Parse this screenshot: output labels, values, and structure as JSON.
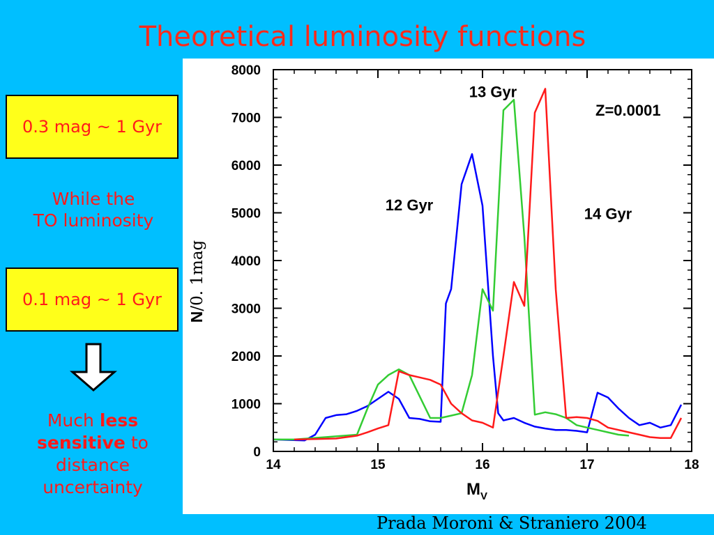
{
  "slide": {
    "title": "Theoretical luminosity functions",
    "box1": "0.3 mag ~ 1 Gyr",
    "box2": "0.1 mag ~ 1 Gyr",
    "while_line1": "While the",
    "while_line2": "TO luminosity",
    "much_word": "Much",
    "less_word": "less",
    "sensitive_word": "sensitive",
    "to_word": "to",
    "distance_word": "distance",
    "uncertainty_word": "uncertainty",
    "citation": "Prada Moroni & Straniero 2004"
  },
  "colors": {
    "background": "#00BFFF",
    "title": "#FF2A1A",
    "box_fill": "#FFFF1A",
    "text_red": "#FF1A1A"
  },
  "chart_data": {
    "type": "line",
    "xlabel": "M",
    "xlabel_sub": "V",
    "ylabel_bold": "N",
    "ylabel_rest": "/0. 1mag",
    "xlim": [
      14,
      18
    ],
    "ylim": [
      0,
      8000
    ],
    "xticks": [
      14,
      15,
      16,
      17,
      18
    ],
    "yticks": [
      0,
      1000,
      2000,
      3000,
      4000,
      5000,
      6000,
      7000,
      8000
    ],
    "annotation": "Z=0.0001",
    "series": [
      {
        "name": "12 Gyr",
        "color": "#0000FF",
        "x": [
          14.0,
          14.3,
          14.4,
          14.5,
          14.6,
          14.7,
          14.8,
          14.9,
          15.0,
          15.1,
          15.2,
          15.3,
          15.4,
          15.5,
          15.6,
          15.65,
          15.7,
          15.8,
          15.9,
          16.0,
          16.1,
          16.15,
          16.2,
          16.3,
          16.4,
          16.5,
          16.6,
          16.7,
          16.8,
          16.9,
          17.0,
          17.1,
          17.2,
          17.3,
          17.4,
          17.5,
          17.6,
          17.7,
          17.8,
          17.9
        ],
        "y": [
          250,
          230,
          350,
          700,
          760,
          780,
          850,
          950,
          1100,
          1250,
          1100,
          700,
          680,
          630,
          620,
          3100,
          3400,
          5600,
          6230,
          5150,
          2000,
          800,
          650,
          700,
          600,
          520,
          480,
          450,
          450,
          430,
          400,
          1230,
          1130,
          900,
          700,
          550,
          600,
          500,
          550,
          980
        ]
      },
      {
        "name": "13 Gyr",
        "color": "#33CC33",
        "x": [
          14.0,
          14.2,
          14.5,
          14.8,
          14.9,
          15.0,
          15.1,
          15.2,
          15.3,
          15.4,
          15.5,
          15.6,
          15.7,
          15.8,
          15.9,
          16.0,
          16.1,
          16.2,
          16.3,
          16.4,
          16.5,
          16.6,
          16.7,
          16.8,
          16.9,
          17.0,
          17.1,
          17.2,
          17.3,
          17.4
        ],
        "y": [
          250,
          250,
          300,
          350,
          900,
          1400,
          1600,
          1720,
          1600,
          1150,
          700,
          700,
          750,
          800,
          1600,
          3400,
          2950,
          7150,
          7370,
          4500,
          770,
          820,
          780,
          700,
          550,
          500,
          450,
          400,
          350,
          330
        ]
      },
      {
        "name": "14 Gyr",
        "color": "#FF1A1A",
        "x": [
          14.2,
          14.4,
          14.6,
          14.8,
          14.9,
          15.0,
          15.1,
          15.2,
          15.3,
          15.4,
          15.5,
          15.6,
          15.7,
          15.8,
          15.9,
          16.0,
          16.1,
          16.2,
          16.3,
          16.4,
          16.5,
          16.6,
          16.7,
          16.8,
          16.9,
          17.0,
          17.1,
          17.2,
          17.3,
          17.4,
          17.5,
          17.6,
          17.7,
          17.8,
          17.9
        ],
        "y": [
          250,
          260,
          270,
          330,
          400,
          480,
          550,
          1680,
          1600,
          1550,
          1500,
          1400,
          1000,
          800,
          650,
          600,
          500,
          2000,
          3550,
          3050,
          7100,
          7600,
          3400,
          700,
          720,
          700,
          640,
          500,
          450,
          400,
          350,
          300,
          280,
          280,
          700
        ]
      }
    ],
    "curve_labels": [
      {
        "text": "12 Gyr",
        "x": 15.3,
        "y": 5050
      },
      {
        "text": "13 Gyr",
        "x": 16.1,
        "y": 7420
      },
      {
        "text": "14 Gyr",
        "x": 17.2,
        "y": 4870
      }
    ]
  }
}
